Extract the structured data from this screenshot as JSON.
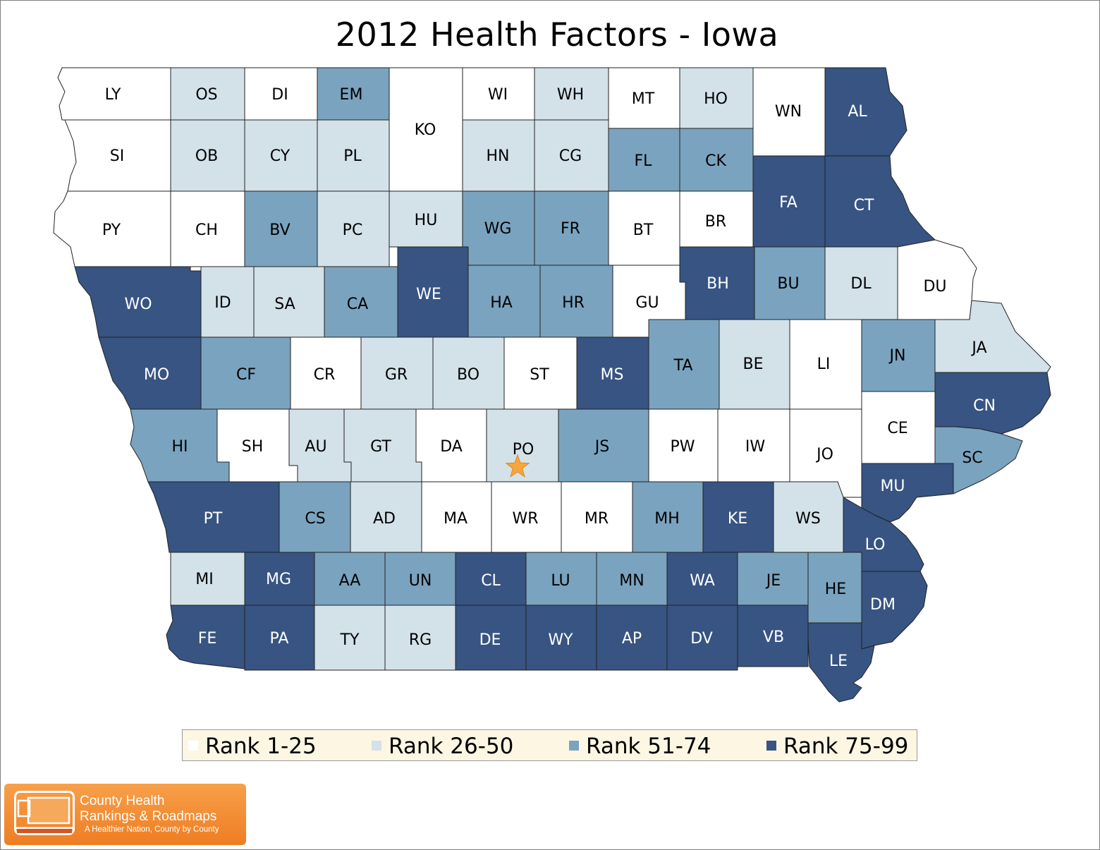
{
  "title": "2012 Health Factors - Iowa",
  "colors": {
    "rank_1_25": "#ffffff",
    "rank_26_50": "#d3e1e9",
    "rank_51_74": "#7aa3bf",
    "rank_75_99": "#375482",
    "border": "#222222",
    "star": "#f7a63a"
  },
  "legend": [
    {
      "label": "Rank 1-25",
      "tier": 1
    },
    {
      "label": "Rank 26-50",
      "tier": 2
    },
    {
      "label": "Rank 51-74",
      "tier": 3
    },
    {
      "label": "Rank 75-99",
      "tier": 4
    }
  ],
  "counties": [
    {
      "code": "LY",
      "tier": 1
    },
    {
      "code": "OS",
      "tier": 2
    },
    {
      "code": "DI",
      "tier": 1
    },
    {
      "code": "EM",
      "tier": 3
    },
    {
      "code": "KO",
      "tier": 1
    },
    {
      "code": "WI",
      "tier": 1
    },
    {
      "code": "WH",
      "tier": 2
    },
    {
      "code": "MT",
      "tier": 1
    },
    {
      "code": "HO",
      "tier": 2
    },
    {
      "code": "WN",
      "tier": 1
    },
    {
      "code": "AL",
      "tier": 4
    },
    {
      "code": "SI",
      "tier": 1
    },
    {
      "code": "OB",
      "tier": 2
    },
    {
      "code": "CY",
      "tier": 2
    },
    {
      "code": "PL",
      "tier": 2
    },
    {
      "code": "HN",
      "tier": 2
    },
    {
      "code": "CG",
      "tier": 2
    },
    {
      "code": "FL",
      "tier": 3
    },
    {
      "code": "CK",
      "tier": 3
    },
    {
      "code": "FA",
      "tier": 4
    },
    {
      "code": "CT",
      "tier": 4
    },
    {
      "code": "PY",
      "tier": 1
    },
    {
      "code": "CH",
      "tier": 1
    },
    {
      "code": "BV",
      "tier": 3
    },
    {
      "code": "PC",
      "tier": 2
    },
    {
      "code": "HU",
      "tier": 2
    },
    {
      "code": "WG",
      "tier": 3
    },
    {
      "code": "FR",
      "tier": 3
    },
    {
      "code": "BT",
      "tier": 1
    },
    {
      "code": "BR",
      "tier": 1
    },
    {
      "code": "WO",
      "tier": 4
    },
    {
      "code": "ID",
      "tier": 2
    },
    {
      "code": "SA",
      "tier": 2
    },
    {
      "code": "CA",
      "tier": 3
    },
    {
      "code": "WE",
      "tier": 4
    },
    {
      "code": "HA",
      "tier": 3
    },
    {
      "code": "HR",
      "tier": 3
    },
    {
      "code": "GU",
      "tier": 1
    },
    {
      "code": "BH",
      "tier": 4
    },
    {
      "code": "BU",
      "tier": 3
    },
    {
      "code": "DL",
      "tier": 2
    },
    {
      "code": "DU",
      "tier": 1
    },
    {
      "code": "MO",
      "tier": 4
    },
    {
      "code": "CF",
      "tier": 3
    },
    {
      "code": "CR",
      "tier": 1
    },
    {
      "code": "GR",
      "tier": 2
    },
    {
      "code": "BO",
      "tier": 2
    },
    {
      "code": "ST",
      "tier": 1
    },
    {
      "code": "MS",
      "tier": 4
    },
    {
      "code": "TA",
      "tier": 3
    },
    {
      "code": "BE",
      "tier": 2
    },
    {
      "code": "LI",
      "tier": 1
    },
    {
      "code": "JN",
      "tier": 3
    },
    {
      "code": "JA",
      "tier": 2
    },
    {
      "code": "CN",
      "tier": 4
    },
    {
      "code": "HI",
      "tier": 3
    },
    {
      "code": "SH",
      "tier": 1
    },
    {
      "code": "AU",
      "tier": 2
    },
    {
      "code": "GT",
      "tier": 2
    },
    {
      "code": "DA",
      "tier": 1
    },
    {
      "code": "PO",
      "tier": 2
    },
    {
      "code": "JS",
      "tier": 3
    },
    {
      "code": "PW",
      "tier": 1
    },
    {
      "code": "IW",
      "tier": 1
    },
    {
      "code": "JO",
      "tier": 1
    },
    {
      "code": "CE",
      "tier": 1
    },
    {
      "code": "SC",
      "tier": 3
    },
    {
      "code": "PT",
      "tier": 4
    },
    {
      "code": "CS",
      "tier": 3
    },
    {
      "code": "AD",
      "tier": 2
    },
    {
      "code": "MA",
      "tier": 1
    },
    {
      "code": "WR",
      "tier": 1
    },
    {
      "code": "MR",
      "tier": 1
    },
    {
      "code": "MH",
      "tier": 3
    },
    {
      "code": "KE",
      "tier": 4
    },
    {
      "code": "WS",
      "tier": 2
    },
    {
      "code": "MU",
      "tier": 4
    },
    {
      "code": "LO",
      "tier": 4
    },
    {
      "code": "MI",
      "tier": 2
    },
    {
      "code": "MG",
      "tier": 4
    },
    {
      "code": "AA",
      "tier": 3
    },
    {
      "code": "UN",
      "tier": 3
    },
    {
      "code": "CL",
      "tier": 4
    },
    {
      "code": "LU",
      "tier": 3
    },
    {
      "code": "MN",
      "tier": 3
    },
    {
      "code": "WA",
      "tier": 4
    },
    {
      "code": "JE",
      "tier": 3
    },
    {
      "code": "HE",
      "tier": 3
    },
    {
      "code": "DM",
      "tier": 4
    },
    {
      "code": "FE",
      "tier": 4
    },
    {
      "code": "PA",
      "tier": 4
    },
    {
      "code": "TY",
      "tier": 2
    },
    {
      "code": "RG",
      "tier": 2
    },
    {
      "code": "DE",
      "tier": 4
    },
    {
      "code": "WY",
      "tier": 4
    },
    {
      "code": "AP",
      "tier": 4
    },
    {
      "code": "DV",
      "tier": 4
    },
    {
      "code": "VB",
      "tier": 4
    },
    {
      "code": "LE",
      "tier": 4
    }
  ],
  "marker": {
    "county": "PO",
    "icon": "star-icon"
  },
  "logo": {
    "name_line1": "County Health",
    "name_line2": "Rankings & Roadmaps",
    "tagline": "A Healthier Nation, County by County"
  }
}
